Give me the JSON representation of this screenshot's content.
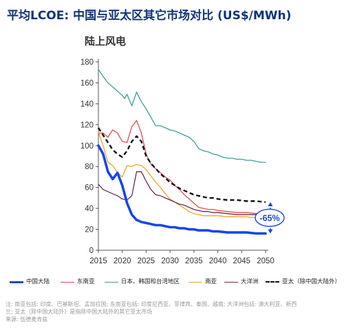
{
  "title": "平均LCOE: 中国与亚太区其它市场对比 (US$/MWh)",
  "chart_data": {
    "type": "line",
    "subtitle": "陆上风电",
    "xlabel": "",
    "ylabel": "",
    "xlim": [
      2015,
      2050
    ],
    "ylim": [
      0,
      180
    ],
    "x_ticks": [
      "2015",
      "2020",
      "2025",
      "2030",
      "2035",
      "2040",
      "2045",
      "2050"
    ],
    "y_ticks": [
      "0",
      "20",
      "40",
      "60",
      "80",
      "100",
      "120",
      "140",
      "160",
      "180"
    ],
    "grid": false,
    "legend_position": "bottom",
    "series": [
      {
        "name": "日本、韩国和台湾地区",
        "color": "#3a9e9a",
        "style": "solid",
        "points": [
          [
            2015,
            173
          ],
          [
            2016,
            166
          ],
          [
            2017,
            160
          ],
          [
            2018,
            156
          ],
          [
            2019,
            152
          ],
          [
            2020,
            148
          ],
          [
            2020.5,
            145
          ],
          [
            2021,
            149
          ],
          [
            2022,
            138
          ],
          [
            2023,
            151
          ],
          [
            2024,
            142
          ],
          [
            2025,
            135
          ],
          [
            2026,
            127
          ],
          [
            2027,
            119
          ],
          [
            2028,
            119
          ],
          [
            2029,
            117
          ],
          [
            2030,
            115
          ],
          [
            2031,
            114
          ],
          [
            2032,
            112
          ],
          [
            2033,
            110
          ],
          [
            2034,
            108
          ],
          [
            2035,
            104
          ],
          [
            2036,
            97
          ],
          [
            2037,
            95
          ],
          [
            2038,
            94
          ],
          [
            2039,
            92
          ],
          [
            2040,
            91
          ],
          [
            2041,
            89
          ],
          [
            2042,
            88
          ],
          [
            2043,
            88
          ],
          [
            2044,
            87
          ],
          [
            2045,
            87
          ],
          [
            2046,
            86
          ],
          [
            2047,
            86
          ],
          [
            2048,
            85
          ],
          [
            2049,
            84
          ],
          [
            2050,
            84
          ]
        ]
      },
      {
        "name": "东南亚",
        "color": "#e8474f",
        "style": "solid",
        "points": [
          [
            2015,
            112
          ],
          [
            2016,
            112
          ],
          [
            2017,
            108
          ],
          [
            2018,
            115
          ],
          [
            2019,
            112
          ],
          [
            2020,
            104
          ],
          [
            2021,
            103
          ],
          [
            2022,
            118
          ],
          [
            2023,
            124
          ],
          [
            2024,
            112
          ],
          [
            2025,
            92
          ],
          [
            2026,
            82
          ],
          [
            2027,
            78
          ],
          [
            2028,
            74
          ],
          [
            2029,
            70
          ],
          [
            2030,
            67
          ],
          [
            2031,
            62
          ],
          [
            2032,
            58
          ],
          [
            2033,
            53
          ],
          [
            2034,
            49
          ],
          [
            2035,
            45
          ],
          [
            2036,
            41
          ],
          [
            2037,
            40
          ],
          [
            2038,
            39
          ],
          [
            2039,
            39
          ],
          [
            2040,
            38
          ],
          [
            2042,
            37
          ],
          [
            2044,
            36
          ],
          [
            2046,
            36
          ],
          [
            2048,
            35
          ],
          [
            2050,
            35
          ]
        ]
      },
      {
        "name": "南亚",
        "color": "#f0a22d",
        "style": "solid",
        "points": [
          [
            2015,
            113
          ],
          [
            2016,
            100
          ],
          [
            2017,
            84
          ],
          [
            2018,
            81
          ],
          [
            2019,
            74
          ],
          [
            2020,
            70
          ],
          [
            2021,
            81
          ],
          [
            2022,
            80
          ],
          [
            2023,
            82
          ],
          [
            2024,
            81
          ],
          [
            2025,
            77
          ],
          [
            2026,
            71
          ],
          [
            2027,
            65
          ],
          [
            2028,
            60
          ],
          [
            2029,
            54
          ],
          [
            2030,
            49
          ],
          [
            2031,
            46
          ],
          [
            2032,
            43
          ],
          [
            2033,
            40
          ],
          [
            2034,
            37
          ],
          [
            2035,
            35
          ],
          [
            2036,
            34
          ],
          [
            2037,
            33
          ],
          [
            2038,
            33
          ],
          [
            2039,
            33
          ],
          [
            2040,
            33
          ],
          [
            2042,
            32
          ],
          [
            2044,
            32
          ],
          [
            2046,
            32
          ],
          [
            2048,
            31
          ],
          [
            2050,
            31
          ]
        ]
      },
      {
        "name": "大洋洲",
        "color": "#6a2a54",
        "style": "solid",
        "points": [
          [
            2015,
            63
          ],
          [
            2016,
            58
          ],
          [
            2017,
            56
          ],
          [
            2018,
            54
          ],
          [
            2019,
            52
          ],
          [
            2020,
            49
          ],
          [
            2021,
            48
          ],
          [
            2022,
            52
          ],
          [
            2023,
            75
          ],
          [
            2024,
            75
          ],
          [
            2025,
            66
          ],
          [
            2026,
            58
          ],
          [
            2027,
            53
          ],
          [
            2028,
            52
          ],
          [
            2029,
            50
          ],
          [
            2030,
            48
          ],
          [
            2031,
            46
          ],
          [
            2032,
            44
          ],
          [
            2033,
            43
          ],
          [
            2034,
            41
          ],
          [
            2035,
            39
          ],
          [
            2036,
            38
          ],
          [
            2037,
            37
          ],
          [
            2038,
            37
          ],
          [
            2039,
            36
          ],
          [
            2040,
            36
          ],
          [
            2042,
            35
          ],
          [
            2044,
            34
          ],
          [
            2046,
            34
          ],
          [
            2048,
            34
          ],
          [
            2050,
            34
          ]
        ]
      },
      {
        "name": "亚太（除中国大陆外）",
        "color": "#111111",
        "style": "dashed",
        "points": [
          [
            2015,
            117
          ],
          [
            2016,
            110
          ],
          [
            2017,
            103
          ],
          [
            2018,
            96
          ],
          [
            2019,
            92
          ],
          [
            2020,
            89
          ],
          [
            2021,
            95
          ],
          [
            2022,
            104
          ],
          [
            2023,
            109
          ],
          [
            2024,
            104
          ],
          [
            2025,
            90
          ],
          [
            2026,
            83
          ],
          [
            2027,
            78
          ],
          [
            2028,
            73
          ],
          [
            2029,
            69
          ],
          [
            2030,
            65
          ],
          [
            2031,
            62
          ],
          [
            2032,
            59
          ],
          [
            2033,
            57
          ],
          [
            2034,
            55
          ],
          [
            2035,
            53
          ],
          [
            2036,
            52
          ],
          [
            2037,
            51
          ],
          [
            2038,
            50
          ],
          [
            2039,
            50
          ],
          [
            2040,
            49
          ],
          [
            2042,
            48
          ],
          [
            2044,
            48
          ],
          [
            2046,
            47
          ],
          [
            2048,
            47
          ],
          [
            2050,
            46
          ]
        ]
      },
      {
        "name": "中国大陆",
        "color": "#1646e8",
        "style": "solid-thick",
        "points": [
          [
            2015,
            100
          ],
          [
            2016,
            92
          ],
          [
            2017,
            75
          ],
          [
            2018,
            68
          ],
          [
            2019,
            74
          ],
          [
            2020,
            62
          ],
          [
            2021,
            45
          ],
          [
            2022,
            34
          ],
          [
            2023,
            29
          ],
          [
            2024,
            27
          ],
          [
            2025,
            26
          ],
          [
            2026,
            25
          ],
          [
            2027,
            24
          ],
          [
            2028,
            24
          ],
          [
            2029,
            23
          ],
          [
            2030,
            22
          ],
          [
            2031,
            22
          ],
          [
            2032,
            21
          ],
          [
            2033,
            21
          ],
          [
            2034,
            20
          ],
          [
            2035,
            20
          ],
          [
            2036,
            19
          ],
          [
            2037,
            19
          ],
          [
            2038,
            19
          ],
          [
            2039,
            18
          ],
          [
            2040,
            18
          ],
          [
            2042,
            17
          ],
          [
            2044,
            17
          ],
          [
            2046,
            17
          ],
          [
            2048,
            16
          ],
          [
            2050,
            16
          ]
        ]
      }
    ],
    "annotation": {
      "text": "-65%",
      "x": 2050,
      "from_value": 46,
      "to_value": 16,
      "color": "#1646e8"
    }
  },
  "legend": [
    {
      "label": "中国大陆",
      "color": "#1646e8",
      "style": "solid-thick"
    },
    {
      "label": "东南亚",
      "color": "#e8474f",
      "style": "solid"
    },
    {
      "label": "日本、韩国和台湾地区",
      "color": "#3a9e9a",
      "style": "solid"
    },
    {
      "label": "南亚",
      "color": "#f0a22d",
      "style": "solid"
    },
    {
      "label": "大洋洲",
      "color": "#6a2a54",
      "style": "solid"
    },
    {
      "label": "亚太（除中国大陆外）",
      "color": "#111111",
      "style": "dashed"
    }
  ],
  "notes": {
    "line1": "注: 南亚包括: 印度、巴基斯坦、孟加拉国; 东南亚包括: 印度尼西亚、菲律宾、泰国、越南; 大洋洲包括: 澳大利亚、新西",
    "line2": "兰; 亚太（除中国大陆外）是指除中国大陆外的其它亚太市场",
    "line3": "来源: 伍德麦肯兹"
  }
}
